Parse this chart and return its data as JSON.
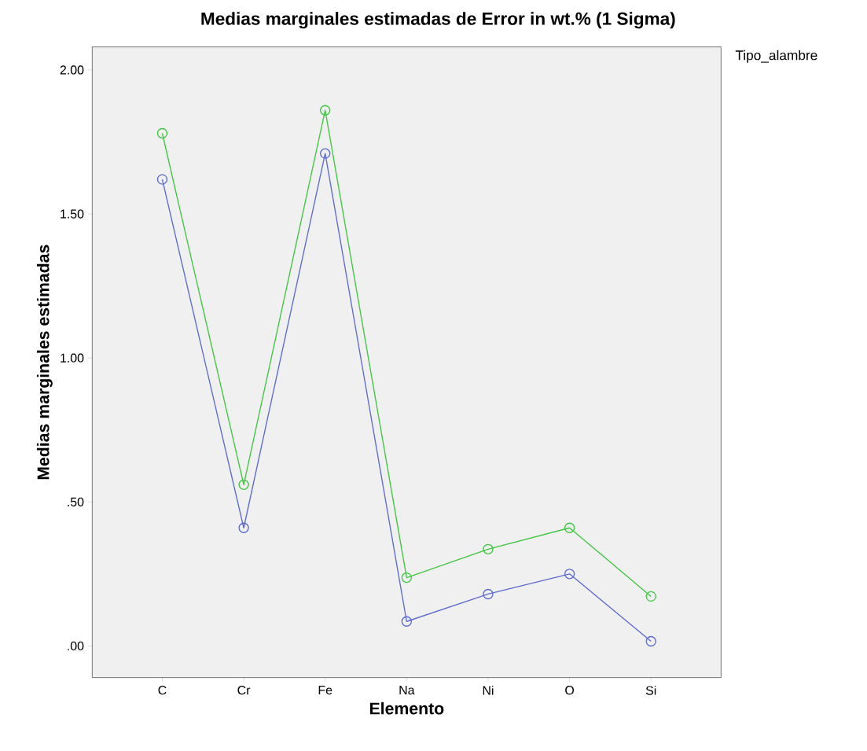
{
  "chart_data": {
    "type": "line",
    "title": "Medias marginales estimadas de Error in wt.% (1 Sigma)",
    "xlabel": "Elemento",
    "ylabel": "Medias marginales estimadas",
    "legend_title": "Tipo_alambre",
    "categories": [
      "C",
      "Cr",
      "Fe",
      "Na",
      "Ni",
      "O",
      "Si"
    ],
    "series": [
      {
        "color": "#5a6acf",
        "values": [
          1.62,
          0.41,
          1.71,
          0.085,
          0.18,
          0.25,
          0.016
        ]
      },
      {
        "color": "#3ec63e",
        "values": [
          1.78,
          0.56,
          1.86,
          0.237,
          0.336,
          0.41,
          0.172
        ]
      }
    ],
    "ylim": [
      -0.11,
      2.08
    ],
    "yticks": [
      {
        "value": 0,
        "label": ".00"
      },
      {
        "value": 0.5,
        "label": ".50"
      },
      {
        "value": 1,
        "label": "1.00"
      },
      {
        "value": 1.5,
        "label": "1.50"
      },
      {
        "value": 2,
        "label": "2.00"
      }
    ],
    "marker": "circle",
    "grid": false
  }
}
